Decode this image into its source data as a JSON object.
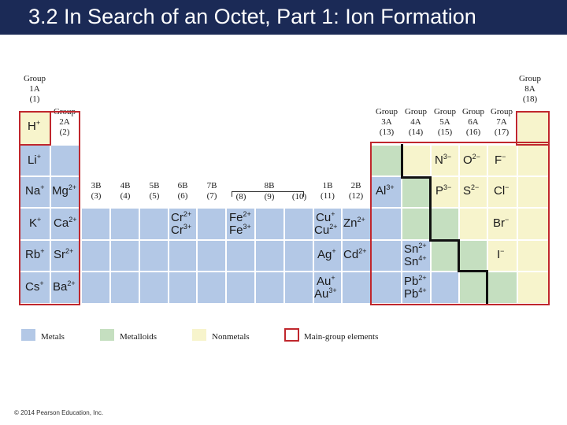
{
  "title": "3.2 In Search of an Octet, Part 1: Ion Formation",
  "colors": {
    "metal": "#b3c8e6",
    "metalloid": "#c5dfc0",
    "nonmetal": "#f7f4cc",
    "main_group": "#c0272d",
    "header": "#1b2a56"
  },
  "groups": {
    "g1a": [
      "Group",
      "1A",
      "(1)"
    ],
    "g2a": [
      "Group",
      "2A",
      "(2)"
    ],
    "g3b": [
      "3B",
      "(3)"
    ],
    "g4b": [
      "4B",
      "(4)"
    ],
    "g5b": [
      "5B",
      "(5)"
    ],
    "g6b": [
      "6B",
      "(6)"
    ],
    "g7b": [
      "7B",
      "(7)"
    ],
    "g8b": "8B",
    "g8": "(8)",
    "g9": "(9)",
    "g10": "(10)",
    "g1b": [
      "1B",
      "(11)"
    ],
    "g2b": [
      "2B",
      "(12)"
    ],
    "g3a": [
      "Group",
      "3A",
      "(13)"
    ],
    "g4a": [
      "Group",
      "4A",
      "(14)"
    ],
    "g5a": [
      "Group",
      "5A",
      "(15)"
    ],
    "g6a": [
      "Group",
      "6A",
      "(16)"
    ],
    "g7a": [
      "Group",
      "7A",
      "(17)"
    ],
    "g8a": [
      "Group",
      "8A",
      "(18)"
    ]
  },
  "ions": [
    {
      "name": "ion-h",
      "sym": "H",
      "charge": "+"
    },
    {
      "name": "ion-li",
      "sym": "Li",
      "charge": "+"
    },
    {
      "name": "ion-na",
      "sym": "Na",
      "charge": "+"
    },
    {
      "name": "ion-mg",
      "sym": "Mg",
      "charge": "2+"
    },
    {
      "name": "ion-k",
      "sym": "K",
      "charge": "+"
    },
    {
      "name": "ion-ca",
      "sym": "Ca",
      "charge": "2+"
    },
    {
      "name": "ion-rb",
      "sym": "Rb",
      "charge": "+"
    },
    {
      "name": "ion-sr",
      "sym": "Sr",
      "charge": "2+"
    },
    {
      "name": "ion-cs",
      "sym": "Cs",
      "charge": "+"
    },
    {
      "name": "ion-ba",
      "sym": "Ba",
      "charge": "2+"
    },
    {
      "name": "ion-cr2",
      "sym": "Cr",
      "charge": "2+"
    },
    {
      "name": "ion-cr3",
      "sym": "Cr",
      "charge": "3+"
    },
    {
      "name": "ion-fe2",
      "sym": "Fe",
      "charge": "2+"
    },
    {
      "name": "ion-fe3",
      "sym": "Fe",
      "charge": "3+"
    },
    {
      "name": "ion-cu1",
      "sym": "Cu",
      "charge": "+"
    },
    {
      "name": "ion-cu2",
      "sym": "Cu",
      "charge": "2+"
    },
    {
      "name": "ion-zn",
      "sym": "Zn",
      "charge": "2+"
    },
    {
      "name": "ion-ag",
      "sym": "Ag",
      "charge": "+"
    },
    {
      "name": "ion-cd",
      "sym": "Cd",
      "charge": "2+"
    },
    {
      "name": "ion-au1",
      "sym": "Au",
      "charge": "+"
    },
    {
      "name": "ion-au3",
      "sym": "Au",
      "charge": "3+"
    },
    {
      "name": "ion-al",
      "sym": "Al",
      "charge": "3+"
    },
    {
      "name": "ion-sn2",
      "sym": "Sn",
      "charge": "2+"
    },
    {
      "name": "ion-sn4",
      "sym": "Sn",
      "charge": "4+"
    },
    {
      "name": "ion-pb2",
      "sym": "Pb",
      "charge": "2+"
    },
    {
      "name": "ion-pb4",
      "sym": "Pb",
      "charge": "4+"
    },
    {
      "name": "ion-n",
      "sym": "N",
      "charge": "3−"
    },
    {
      "name": "ion-p",
      "sym": "P",
      "charge": "3−"
    },
    {
      "name": "ion-o",
      "sym": "O",
      "charge": "2−"
    },
    {
      "name": "ion-s",
      "sym": "S",
      "charge": "2−"
    },
    {
      "name": "ion-f",
      "sym": "F",
      "charge": "−"
    },
    {
      "name": "ion-cl",
      "sym": "Cl",
      "charge": "−"
    },
    {
      "name": "ion-br",
      "sym": "Br",
      "charge": "−"
    },
    {
      "name": "ion-i",
      "sym": "I",
      "charge": "−"
    }
  ],
  "legend": {
    "metals": "Metals",
    "metalloids": "Metalloids",
    "nonmetals": "Nonmetals",
    "main_group": "Main-group elements"
  },
  "copyright": "© 2014 Pearson Education, Inc."
}
